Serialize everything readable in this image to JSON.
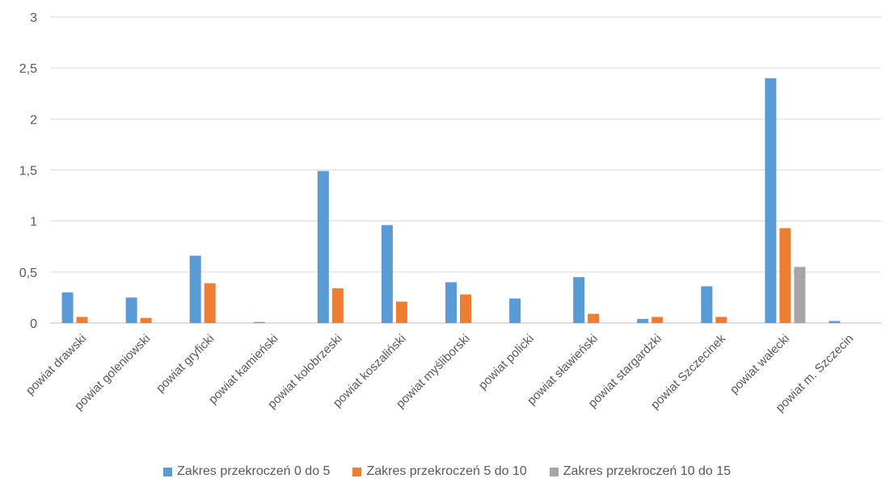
{
  "chart_data": {
    "type": "bar",
    "categories": [
      "powiat drawski",
      "powiat goleniowski",
      "powiat gryficki",
      "powiat kamieński",
      "powiat kołobrzeski",
      "powiat koszaliński",
      "powiat myśliborski",
      "powiat policki",
      "powiat sławieński",
      "powiat stargardzki",
      "powiat Szczecinek",
      "powiat wałecki",
      "powiat m. Szczecin"
    ],
    "series": [
      {
        "name": "Zakres przekroczeń 0 do 5",
        "color": "#5B9BD5",
        "values": [
          0.3,
          0.25,
          0.66,
          0.01,
          1.49,
          0.96,
          0.4,
          0.24,
          0.45,
          0.04,
          0.36,
          2.4,
          0.02
        ]
      },
      {
        "name": "Zakres przekroczeń 5 do 10",
        "color": "#ED7D31",
        "values": [
          0.06,
          0.05,
          0.39,
          0,
          0.34,
          0.21,
          0.28,
          0,
          0.09,
          0.06,
          0.06,
          0.93,
          0
        ]
      },
      {
        "name": "Zakres przekroczeń 10 do 15",
        "color": "#A5A5A5",
        "values": [
          0,
          0,
          0,
          0,
          0,
          0,
          0,
          0,
          0,
          0,
          0,
          0.55,
          0
        ]
      }
    ],
    "y_ticks": [
      "0",
      "0,5",
      "1",
      "1,5",
      "2",
      "2,5",
      "3"
    ],
    "ylim": [
      0,
      3
    ],
    "grid": true,
    "legend_position": "bottom"
  }
}
